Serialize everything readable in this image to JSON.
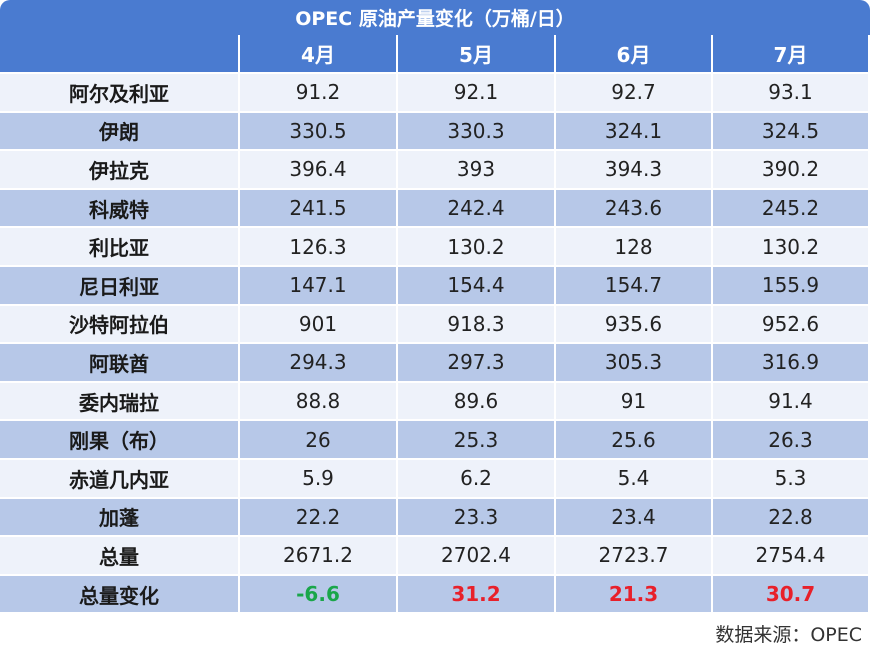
{
  "title": "OPEC 原油产量变化（万桶/日）",
  "table": {
    "columns": [
      "4月",
      "5月",
      "6月",
      "7月"
    ],
    "rows": [
      {
        "label": "阿尔及利亚",
        "values": [
          91.2,
          92.1,
          92.7,
          93.1
        ]
      },
      {
        "label": "伊朗",
        "values": [
          330.5,
          330.3,
          324.1,
          324.5
        ]
      },
      {
        "label": "伊拉克",
        "values": [
          396.4,
          393,
          394.3,
          390.2
        ]
      },
      {
        "label": "科威特",
        "values": [
          241.5,
          242.4,
          243.6,
          245.2
        ]
      },
      {
        "label": "利比亚",
        "values": [
          126.3,
          130.2,
          128,
          130.2
        ]
      },
      {
        "label": "尼日利亚",
        "values": [
          147.1,
          154.4,
          154.7,
          155.9
        ]
      },
      {
        "label": "沙特阿拉伯",
        "values": [
          901,
          918.3,
          935.6,
          952.6
        ]
      },
      {
        "label": "阿联酋",
        "values": [
          294.3,
          297.3,
          305.3,
          316.9
        ]
      },
      {
        "label": "委内瑞拉",
        "values": [
          88.8,
          89.6,
          91,
          91.4
        ]
      },
      {
        "label": "刚果（布）",
        "values": [
          26,
          25.3,
          25.6,
          26.3
        ]
      },
      {
        "label": "赤道几内亚",
        "values": [
          5.9,
          6.2,
          5.4,
          5.3
        ]
      },
      {
        "label": "加蓬",
        "values": [
          22.2,
          23.3,
          23.4,
          22.8
        ]
      },
      {
        "label": "总量",
        "values": [
          2671.2,
          2702.4,
          2723.7,
          2754.4
        ]
      },
      {
        "label": "总量变化",
        "values": [
          -6.6,
          31.2,
          21.3,
          30.7
        ]
      }
    ]
  },
  "source": "数据来源：OPEC"
}
